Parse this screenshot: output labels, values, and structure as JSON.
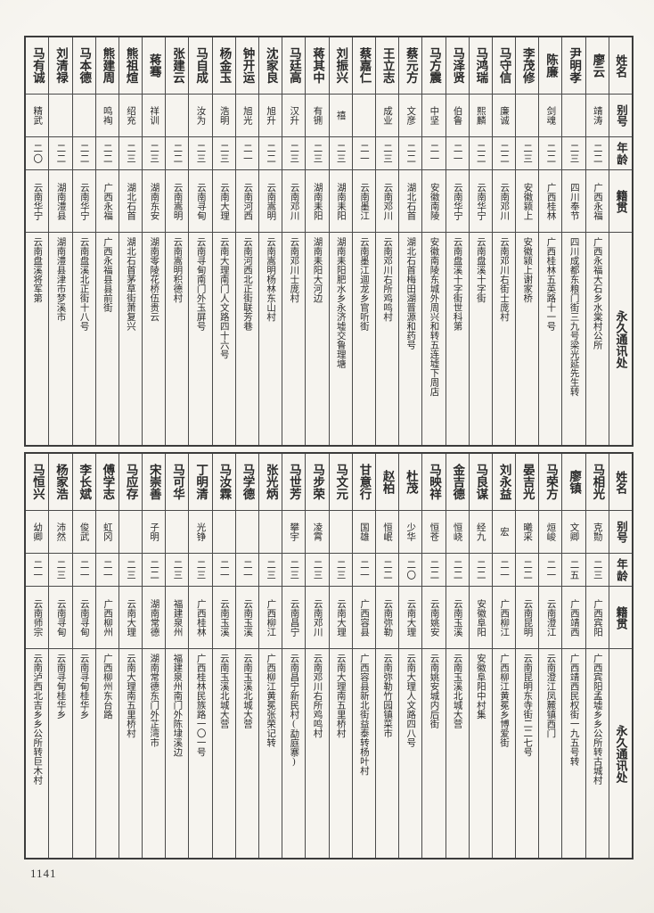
{
  "page": {
    "number": "1141"
  },
  "row_headers": {
    "name": "姓名",
    "alias": "别号",
    "age": "年龄",
    "origin": "籍贯",
    "address": "永久通讯处"
  },
  "tables": [
    {
      "people": [
        {
          "name": "廖云",
          "alias": "靖涛",
          "age": "二二",
          "origin": "广西永福",
          "address": "广西永福大石乡水棠村公所"
        },
        {
          "name": "尹明孝",
          "alias": "",
          "age": "二三",
          "origin": "四川奉节",
          "address": "四川成都东粮门街三九号梁光延先生转"
        },
        {
          "name": "陈廉",
          "alias": "剑魂",
          "age": "二二",
          "origin": "广西桂林",
          "address": "广西桂林五英路十一号"
        },
        {
          "name": "李茂修",
          "alias": "",
          "age": "二三",
          "origin": "安徽颍上",
          "address": "安徽颍上谢家桥"
        },
        {
          "name": "马守信",
          "alias": "廉诚",
          "age": "二二",
          "origin": "云南邓川",
          "address": "云南邓川右街士庞村"
        },
        {
          "name": "马鸿瑞",
          "alias": "熙麟",
          "age": "二二",
          "origin": "云南华宁",
          "address": "云南盘溪十字街"
        },
        {
          "name": "马泽贤",
          "alias": "伯鲁",
          "age": "二一",
          "origin": "云南华宁",
          "address": "云南盘溪十字街世科第"
        },
        {
          "name": "马方震",
          "alias": "中坚",
          "age": "二一",
          "origin": "安徽南陵",
          "address": "安徽南陵东城外周兴和转五连墟下周店"
        },
        {
          "name": "蔡元方",
          "alias": "文彦",
          "age": "二二",
          "origin": "湖北石首",
          "address": "湖北石首梅田湖晋源和药号"
        },
        {
          "name": "王立志",
          "alias": "成业",
          "age": "二三",
          "origin": "云南邓川",
          "address": "云南邓川右所鸡鸣村"
        },
        {
          "name": "蔡嘉仁",
          "alias": "",
          "age": "二一",
          "origin": "云南墨江",
          "address": "云南墨江逥龙乡官听街"
        },
        {
          "name": "刘振兴",
          "alias": "禧",
          "age": "二三",
          "origin": "湖南耒阳",
          "address": "湖南耒阳肥水乡永济墟交鲁理塘"
        },
        {
          "name": "蒋其中",
          "alias": "有铏",
          "age": "二三",
          "origin": "湖南耒阳",
          "address": "湖南耒阳大河边"
        },
        {
          "name": "马廷高",
          "alias": "汉升",
          "age": "二三",
          "origin": "云南邓川",
          "address": "云南邓川士庞村"
        },
        {
          "name": "沈家良",
          "alias": "旭升",
          "age": "二二",
          "origin": "云南嵩明",
          "address": "云南嵩明杨林东山村"
        },
        {
          "name": "钟开运",
          "alias": "旭光",
          "age": "二一",
          "origin": "云南河西",
          "address": "云南河西北正街联芳巷"
        },
        {
          "name": "杨金玉",
          "alias": "浩明",
          "age": "二三",
          "origin": "云南大理",
          "address": "云南大理南门人文路四十六号"
        },
        {
          "name": "马自成",
          "alias": "汝为",
          "age": "二三",
          "origin": "云南寻甸",
          "address": "云南寻甸南门外玉屏号"
        },
        {
          "name": "张建云",
          "alias": "",
          "age": "二二",
          "origin": "云南嵩明",
          "address": "云南嵩明积德村"
        },
        {
          "name": "蒋骞",
          "alias": "祥训",
          "age": "二三",
          "origin": "湖南东安",
          "address": "湖南零陵花桥伍贵云"
        },
        {
          "name": "熊祖煊",
          "alias": "绍充",
          "age": "二三",
          "origin": "湖北石首",
          "address": "湖北石首茅草街萧复兴"
        },
        {
          "name": "熊建周",
          "alias": "鸣裪",
          "age": "二二",
          "origin": "广西永福",
          "address": "广西永福县县前街"
        },
        {
          "name": "马本德",
          "alias": "",
          "age": "二二",
          "origin": "云南华宁",
          "address": "云南盘溪北正街十八号"
        },
        {
          "name": "刘清禄",
          "alias": "",
          "age": "二二",
          "origin": "湖南澧县",
          "address": "湖南澧县津市梦溪市"
        },
        {
          "name": "马有诚",
          "alias": "精武",
          "age": "二〇",
          "origin": "云南华宁",
          "address": "云南盘溪将军第"
        }
      ]
    },
    {
      "people": [
        {
          "name": "马相光",
          "alias": "克勚",
          "age": "二三",
          "origin": "广西宾阳",
          "address": "广西宾阳孟墟乡乡公所转古城村"
        },
        {
          "name": "廖镇",
          "alias": "文卿",
          "age": "二五",
          "origin": "广西靖西",
          "address": "广西靖西民权街一九五号转"
        },
        {
          "name": "马荣方",
          "alias": "烜峻",
          "age": "二一",
          "origin": "云南澄江",
          "address": "云南澄江凤麓镇西门"
        },
        {
          "name": "晏吉光",
          "alias": "曦采",
          "age": "二二",
          "origin": "云南昆明",
          "address": "云南昆明东寺街二二七号"
        },
        {
          "name": "刘永益",
          "alias": "宏",
          "age": "二一",
          "origin": "广西柳江",
          "address": "广西柳江黄冕乡博爱街"
        },
        {
          "name": "马良谋",
          "alias": "经九",
          "age": "二二",
          "origin": "安徽阜阳",
          "address": "安徽阜阳中村集"
        },
        {
          "name": "金吉德",
          "alias": "恒峣",
          "age": "二二",
          "origin": "云南玉溪",
          "address": "云南玉溪北城大营"
        },
        {
          "name": "马映祥",
          "alias": "恒苍",
          "age": "二二",
          "origin": "云南姚安",
          "address": "云南姚安城内后街"
        },
        {
          "name": "杜茂",
          "alias": "少华",
          "age": "二〇",
          "origin": "云南大理",
          "address": "云南大理人文路四八号"
        },
        {
          "name": "赵柏",
          "alias": "恒岷",
          "age": "二二",
          "origin": "云南弥勒",
          "address": "云南弥勒竹园镇菜市"
        },
        {
          "name": "甘意行",
          "alias": "国雄",
          "age": "二一",
          "origin": "广西容县",
          "address": "广西容县新北街益泰转杨叶村"
        },
        {
          "name": "马文元",
          "alias": "",
          "age": "二三",
          "origin": "云南大理",
          "address": "云南大理南五里桥村"
        },
        {
          "name": "马步荣",
          "alias": "凌霄",
          "age": "二三",
          "origin": "云南邓川",
          "address": "云南邓川右所鸡鸣村"
        },
        {
          "name": "马世芳",
          "alias": "攀宇",
          "age": "二三",
          "origin": "云南昌宁",
          "address": "云南昌宁新民村(勐庭寨)"
        },
        {
          "name": "张光炳",
          "alias": "",
          "age": "二三",
          "origin": "广西柳江",
          "address": "广西柳江黄冕张荣记转"
        },
        {
          "name": "马学德",
          "alias": "",
          "age": "二一",
          "origin": "云南玉溪",
          "address": "云南玉溪北城大营"
        },
        {
          "name": "马汝霖",
          "alias": "",
          "age": "二一",
          "origin": "云南玉溪",
          "address": "云南玉溪北城大营"
        },
        {
          "name": "丁明清",
          "alias": "光铮",
          "age": "二三",
          "origin": "广西桂林",
          "address": "广西桂林民族路一〇一号"
        },
        {
          "name": "马可华",
          "alias": "",
          "age": "二三",
          "origin": "福建泉州",
          "address": "福建泉州南门外陈埭溪边"
        },
        {
          "name": "宋崇善",
          "alias": "子明",
          "age": "二二",
          "origin": "湖南常德",
          "address": "湖南常德东门外芷湾市"
        },
        {
          "name": "马应存",
          "alias": "",
          "age": "二三",
          "origin": "云南大理",
          "address": "云南大理南五里桥村"
        },
        {
          "name": "傅学志",
          "alias": "虹冈",
          "age": "二一",
          "origin": "广西柳州",
          "address": "广西柳州东台路"
        },
        {
          "name": "李长斌",
          "alias": "俊武",
          "age": "二一",
          "origin": "云南寻甸",
          "address": "云南寻甸桂华乡"
        },
        {
          "name": "杨家浩",
          "alias": "沛然",
          "age": "二三",
          "origin": "云南寻甸",
          "address": "云南寻甸桂华乡"
        },
        {
          "name": "马恒兴",
          "alias": "幼卿",
          "age": "二一",
          "origin": "云南师宗",
          "address": "云南泸西北吉乡乡公所转巨木村"
        }
      ]
    }
  ]
}
